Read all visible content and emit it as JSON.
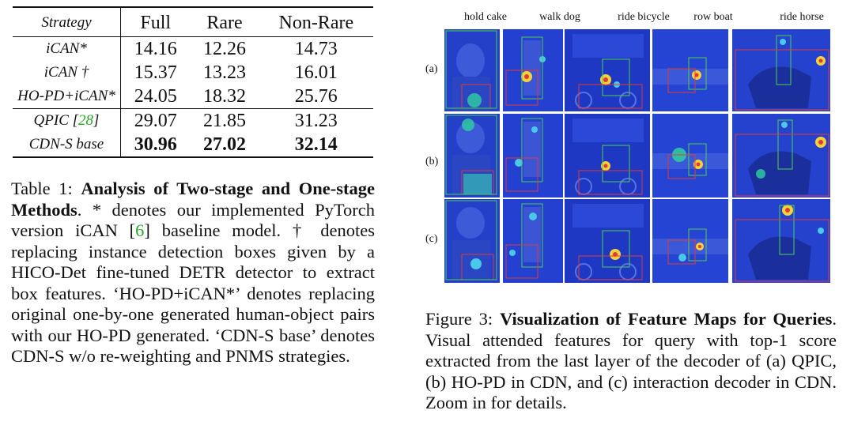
{
  "table": {
    "headers": [
      "Strategy",
      "Full",
      "Rare",
      "Non-Rare"
    ],
    "rows": [
      {
        "strategy": "iCAN*",
        "full": "14.16",
        "rare": "12.26",
        "nonrare": "14.73"
      },
      {
        "strategy": "iCAN †",
        "full": "15.37",
        "rare": "13.23",
        "nonrare": "16.01"
      },
      {
        "strategy": "HO-PD+iCAN*",
        "full": "24.05",
        "rare": "18.32",
        "nonrare": "25.76"
      },
      {
        "strategy_prefix": "QPIC [",
        "strategy_cite": "28",
        "strategy_suffix": "]",
        "full": "29.07",
        "rare": "21.85",
        "nonrare": "31.23"
      },
      {
        "strategy": "CDN-S base",
        "full": "30.96",
        "rare": "27.02",
        "nonrare": "32.14"
      }
    ]
  },
  "table_caption": {
    "label": "Table 1:",
    "title": "Analysis of Two-stage and One-stage Methods",
    "text1": ". * denotes our implemented PyTorch version iCAN [",
    "cite1": "6",
    "text2": "] baseline model. † denotes replacing instance detection boxes given by a HICO-Det fine-tuned DETR detector to extract box features. ‘HO-PD+iCAN*’ denotes replacing original one-by-one generated human-object pairs with our HO-PD generated. ‘CDN-S base’ denotes CDN-S w/o re-weighting and PNMS strategies."
  },
  "figure": {
    "columns": [
      "hold cake",
      "walk dog",
      "ride bicycle",
      "row boat",
      "ride horse"
    ],
    "rows": [
      "(a)",
      "(b)",
      "(c)"
    ]
  },
  "figure_caption": {
    "label": "Figure 3:",
    "title": "Visualization of Feature Maps for Queries",
    "text": ". Visual attended features for query with top-1 score extracted from the last layer of the decoder of (a) QPIC, (b) HO-PD in CDN, and (c) interaction decoder in CDN. Zoom in for details."
  },
  "colors": {
    "heatmap_base": "#1f3bd8",
    "box_green": "#4cd04c",
    "box_red": "#e23a3a",
    "cite_green": "#2aa52a"
  }
}
